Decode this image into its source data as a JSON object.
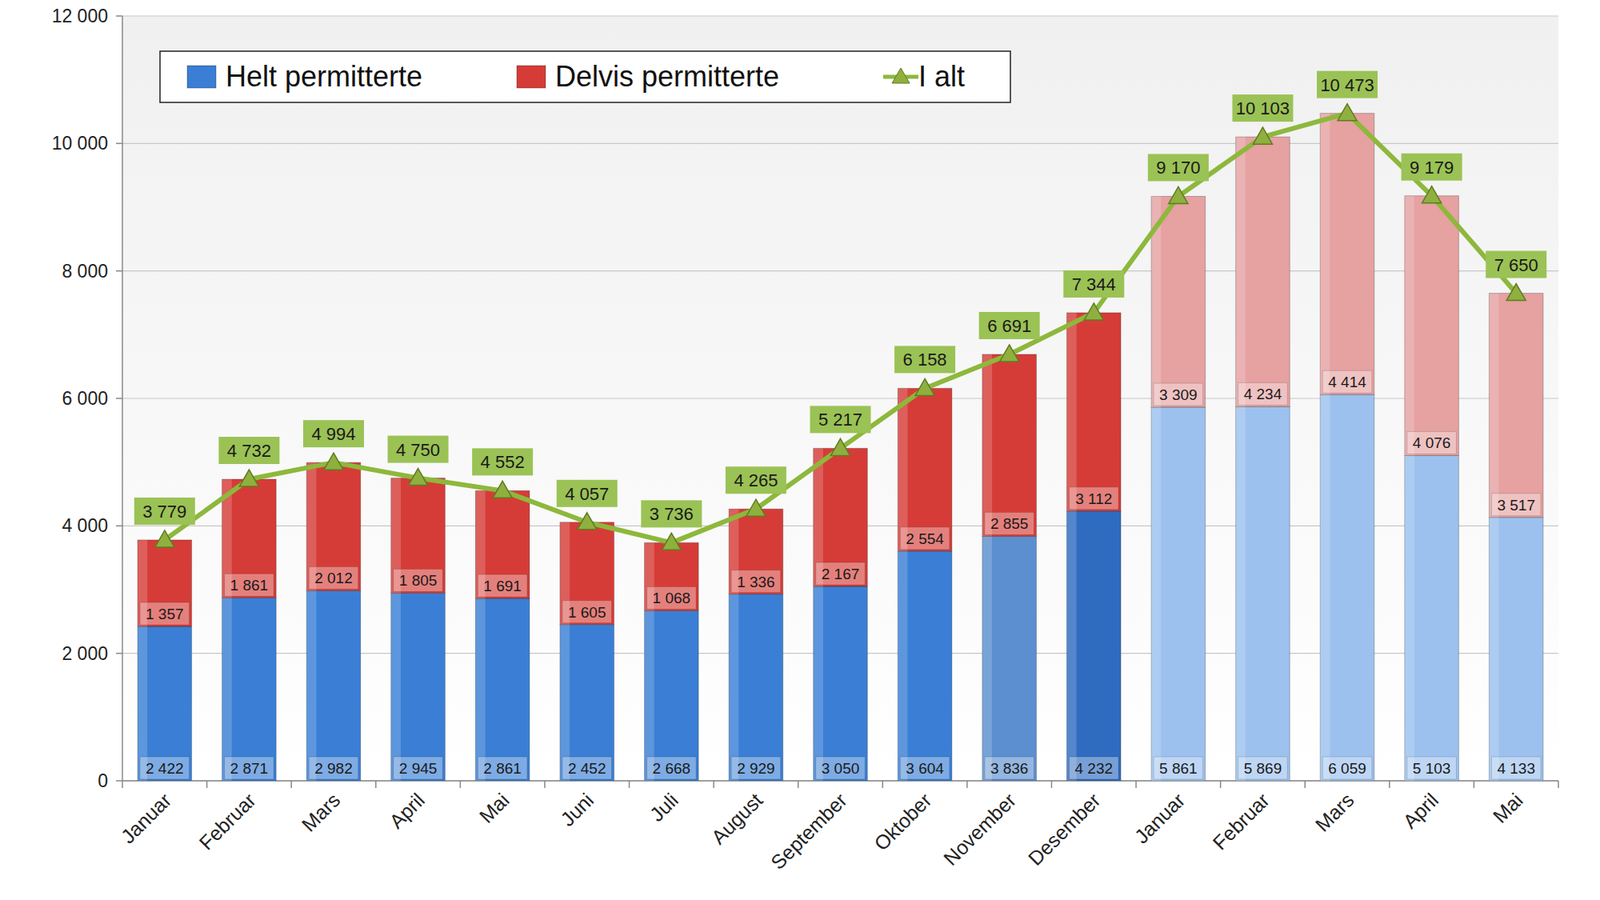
{
  "chart_data": {
    "type": "bar",
    "stacked": true,
    "data_labels": true,
    "grid": true,
    "legend": "upper left",
    "categories": [
      "Januar",
      "Februar",
      "Mars",
      "April",
      "Mai",
      "Juni",
      "Juli",
      "August",
      "September",
      "Oktober",
      "November",
      "Desember",
      "Januar",
      "Februar",
      "Mars",
      "April",
      "Mai"
    ],
    "ylim": [
      0,
      12000
    ],
    "yticks": [
      0,
      {
        "value": 2000,
        "label": "2 000"
      },
      {
        "value": 4000,
        "label": "4 000"
      },
      {
        "value": 6000,
        "label": "6 000"
      },
      {
        "value": 8000,
        "label": "8 000"
      },
      {
        "value": 10000,
        "label": "10 000"
      },
      {
        "value": 12000,
        "label": "12 000"
      }
    ],
    "series": [
      {
        "name": "Helt permitterte",
        "color": "#3a7fd5",
        "colors": [
          "#3a7fd5",
          "#3a7fd5",
          "#3a7fd5",
          "#3a7fd5",
          "#3a7fd5",
          "#3a7fd5",
          "#3a7fd5",
          "#3a7fd5",
          "#3a7fd5",
          "#3a7fd5",
          "#5b8fcf",
          "#2f6cc0",
          "#9cc1ee",
          "#9cc1ee",
          "#9cc1ee",
          "#9cc1ee",
          "#9cc1ee"
        ],
        "values": [
          2422,
          2871,
          2982,
          2945,
          2861,
          2452,
          2668,
          2929,
          3050,
          3604,
          3836,
          4232,
          5861,
          5869,
          6059,
          5103,
          4133
        ],
        "value_labels": [
          "2 422",
          "2 871",
          "2 982",
          "2 945",
          "2 861",
          "2 452",
          "2 668",
          "2 929",
          "3 050",
          "3 604",
          "3 836",
          "4 232",
          "5 861",
          "5 869",
          "6 059",
          "5 103",
          "4 133"
        ]
      },
      {
        "name": "Delvis permitterte",
        "color": "#d63c37",
        "colors": [
          "#d63c37",
          "#d63c37",
          "#d63c37",
          "#d63c37",
          "#d63c37",
          "#d63c37",
          "#d63c37",
          "#d63c37",
          "#d63c37",
          "#d63c37",
          "#d63c37",
          "#d63c37",
          "#e6a1a1",
          "#e6a1a1",
          "#e6a1a1",
          "#e6a1a1",
          "#e6a1a1"
        ],
        "values": [
          1357,
          1861,
          2012,
          1805,
          1691,
          1605,
          1068,
          1336,
          2167,
          2554,
          2855,
          3112,
          3309,
          4234,
          4414,
          4076,
          3517
        ],
        "value_labels": [
          "1 357",
          "1 861",
          "2 012",
          "1 805",
          "1 691",
          "1 605",
          "1 068",
          "1 336",
          "2 167",
          "2 554",
          "2 855",
          "3 112",
          "3 309",
          "4 234",
          "4 414",
          "4 076",
          "3 517"
        ]
      },
      {
        "name": "I alt",
        "type": "line",
        "color": "#8db83c",
        "marker": "triangle",
        "values": [
          3779,
          4732,
          4994,
          4750,
          4552,
          4057,
          3736,
          4265,
          5217,
          6158,
          6691,
          7344,
          9170,
          10103,
          10473,
          9179,
          7650
        ],
        "value_labels": [
          "3 779",
          "4 732",
          "4 994",
          "4 750",
          "4 552",
          "4 057",
          "3 736",
          "4 265",
          "5 217",
          "6 158",
          "6 691",
          "7 344",
          "9 170",
          "10 103",
          "10 473",
          "9 179",
          "7 650"
        ]
      }
    ]
  }
}
